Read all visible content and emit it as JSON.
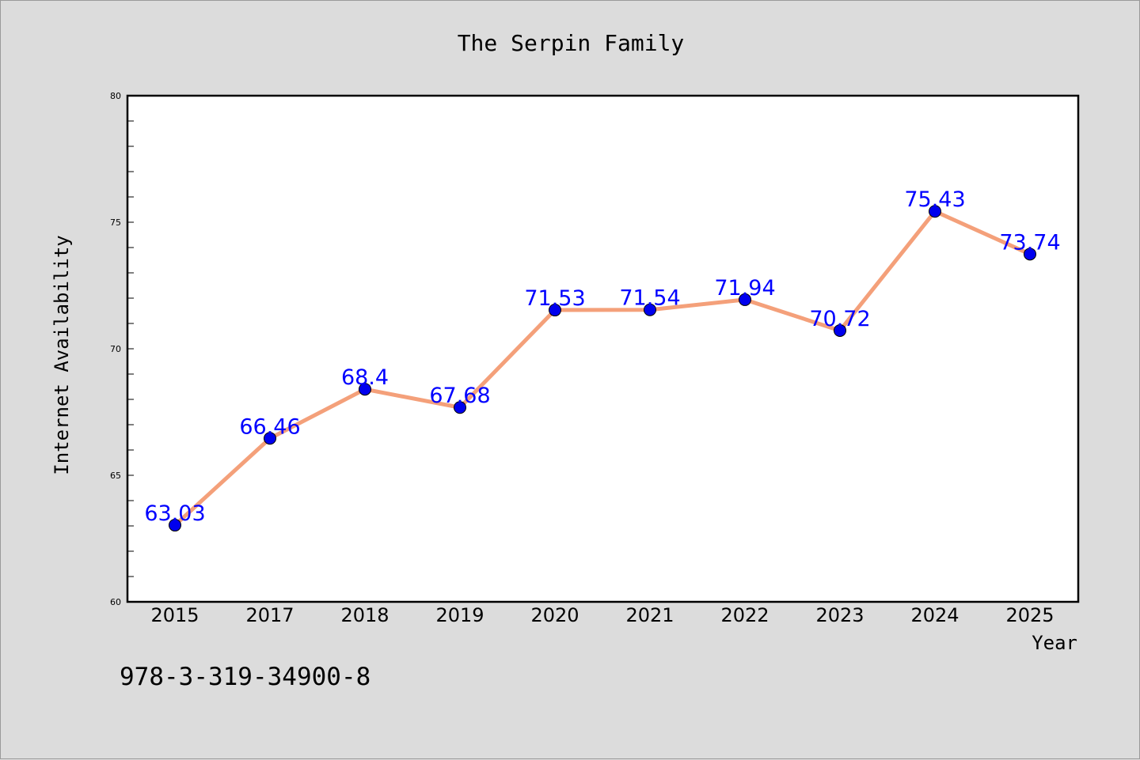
{
  "chart_data": {
    "type": "line",
    "title": "The Serpin Family",
    "xlabel": "Year",
    "ylabel": "Internet Availability",
    "categories": [
      "2015",
      "2017",
      "2018",
      "2019",
      "2020",
      "2021",
      "2022",
      "2023",
      "2024",
      "2025"
    ],
    "values": [
      63.03,
      66.46,
      68.4,
      67.68,
      71.53,
      71.54,
      71.94,
      70.72,
      75.43,
      73.74
    ],
    "data_labels": [
      "63.03",
      "66.46",
      "68.4",
      "67.68",
      "71.53",
      "71.54",
      "71.94",
      "70.72",
      "75.43",
      "73.74"
    ],
    "ylim": [
      60,
      80
    ],
    "yticks": [
      "60",
      "65",
      "70",
      "75",
      "80"
    ],
    "grid": false,
    "colors": {
      "line": "#f4a07a",
      "marker": "#0000ee",
      "label": "#0000ff",
      "background": "#dcdcdc",
      "plot_background": "#ffffff"
    }
  },
  "footer_text": "978-3-319-34900-8"
}
